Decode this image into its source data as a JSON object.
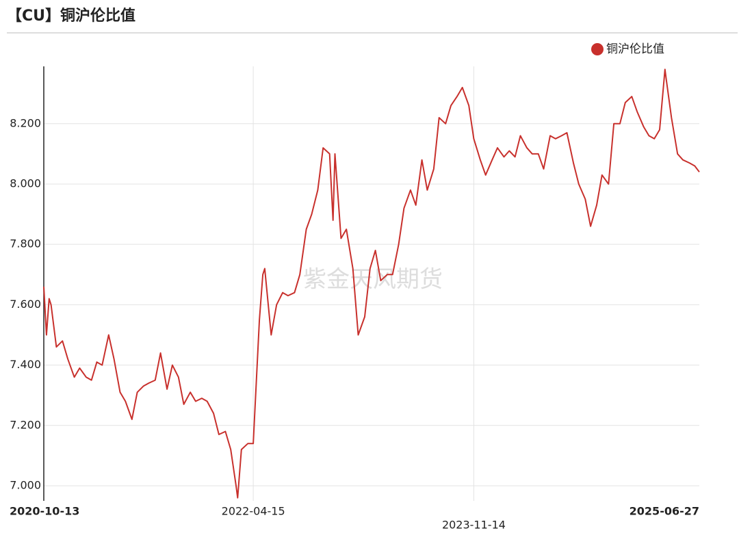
{
  "chart_data": {
    "type": "line",
    "title": "【CU】铜沪伦比值",
    "watermark": "紫金天风期货",
    "legend": "top-right",
    "grid": true,
    "xlim": [
      "2020-10-13",
      "2025-06-27"
    ],
    "xticks": [
      "2020-10-13",
      "2022-04-15",
      "2023-11-14",
      "2025-06-27"
    ],
    "ylim": [
      6.95,
      8.39
    ],
    "yticks": [
      {
        "value": 7.0,
        "label": "7.000"
      },
      {
        "value": 7.2,
        "label": "7.200"
      },
      {
        "value": 7.4,
        "label": "7.400"
      },
      {
        "value": 7.6,
        "label": "7.600"
      },
      {
        "value": 7.8,
        "label": "7.800"
      },
      {
        "value": 8.0,
        "label": "8.000"
      },
      {
        "value": 8.2,
        "label": "8.200"
      }
    ],
    "x": [
      "2020-10-13",
      "2020-10-20",
      "2020-10-27",
      "2020-11-01",
      "2020-11-15",
      "2020-12-01",
      "2020-12-15",
      "2021-01-01",
      "2021-01-15",
      "2021-02-01",
      "2021-02-15",
      "2021-03-01",
      "2021-03-15",
      "2021-04-01",
      "2021-04-15",
      "2021-05-01",
      "2021-05-15",
      "2021-06-01",
      "2021-06-15",
      "2021-07-01",
      "2021-07-15",
      "2021-08-01",
      "2021-08-15",
      "2021-09-01",
      "2021-09-15",
      "2021-10-01",
      "2021-10-15",
      "2021-11-01",
      "2021-11-15",
      "2021-12-01",
      "2021-12-15",
      "2022-01-01",
      "2022-01-15",
      "2022-02-01",
      "2022-02-15",
      "2022-03-01",
      "2022-03-05",
      "2022-03-15",
      "2022-04-01",
      "2022-04-15",
      "2022-05-01",
      "2022-05-10",
      "2022-05-15",
      "2022-06-01",
      "2022-06-15",
      "2022-07-01",
      "2022-07-15",
      "2022-08-01",
      "2022-08-15",
      "2022-09-01",
      "2022-09-15",
      "2022-10-01",
      "2022-10-15",
      "2022-11-01",
      "2022-11-10",
      "2022-11-15",
      "2022-12-01",
      "2022-12-15",
      "2023-01-01",
      "2023-01-15",
      "2023-02-01",
      "2023-02-15",
      "2023-03-01",
      "2023-03-15",
      "2023-04-01",
      "2023-04-15",
      "2023-05-01",
      "2023-05-15",
      "2023-06-01",
      "2023-06-15",
      "2023-07-01",
      "2023-07-15",
      "2023-08-01",
      "2023-08-15",
      "2023-09-01",
      "2023-09-15",
      "2023-10-01",
      "2023-10-15",
      "2023-11-01",
      "2023-11-14",
      "2023-12-01",
      "2023-12-15",
      "2024-01-01",
      "2024-01-15",
      "2024-02-01",
      "2024-02-15",
      "2024-03-01",
      "2024-03-15",
      "2024-04-01",
      "2024-04-15",
      "2024-05-01",
      "2024-05-15",
      "2024-06-01",
      "2024-06-15",
      "2024-07-01",
      "2024-07-15",
      "2024-08-01",
      "2024-08-15",
      "2024-09-01",
      "2024-09-15",
      "2024-10-01",
      "2024-10-15",
      "2024-11-01",
      "2024-11-15",
      "2024-12-01",
      "2024-12-15",
      "2025-01-01",
      "2025-01-15",
      "2025-02-01",
      "2025-02-15",
      "2025-03-01",
      "2025-03-15",
      "2025-03-29",
      "2025-04-01",
      "2025-04-15",
      "2025-05-01",
      "2025-05-15",
      "2025-06-01",
      "2025-06-15",
      "2025-06-27"
    ],
    "series": [
      {
        "name": "铜沪伦比值",
        "color": "#c8302c",
        "values": [
          7.66,
          7.5,
          7.62,
          7.6,
          7.46,
          7.48,
          7.42,
          7.36,
          7.39,
          7.36,
          7.35,
          7.41,
          7.4,
          7.5,
          7.42,
          7.31,
          7.28,
          7.22,
          7.31,
          7.33,
          7.34,
          7.35,
          7.44,
          7.32,
          7.4,
          7.36,
          7.27,
          7.31,
          7.28,
          7.29,
          7.28,
          7.24,
          7.17,
          7.18,
          7.12,
          7.0,
          6.96,
          7.12,
          7.14,
          7.14,
          7.55,
          7.7,
          7.72,
          7.5,
          7.6,
          7.64,
          7.63,
          7.64,
          7.7,
          7.85,
          7.9,
          7.98,
          8.12,
          8.1,
          7.88,
          8.1,
          7.82,
          7.85,
          7.72,
          7.5,
          7.56,
          7.72,
          7.78,
          7.68,
          7.7,
          7.7,
          7.8,
          7.92,
          7.98,
          7.93,
          8.08,
          7.98,
          8.05,
          8.22,
          8.2,
          8.26,
          8.29,
          8.32,
          8.26,
          8.15,
          8.08,
          8.03,
          8.08,
          8.12,
          8.09,
          8.11,
          8.09,
          8.16,
          8.12,
          8.1,
          8.1,
          8.05,
          8.16,
          8.15,
          8.16,
          8.17,
          8.07,
          8.0,
          7.95,
          7.86,
          7.93,
          8.03,
          8.0,
          8.2,
          8.2,
          8.27,
          8.29,
          8.24,
          8.19,
          8.16,
          8.15,
          8.18,
          8.38,
          8.35,
          8.22,
          8.1,
          8.08,
          8.07,
          8.06,
          8.04
        ]
      }
    ]
  }
}
